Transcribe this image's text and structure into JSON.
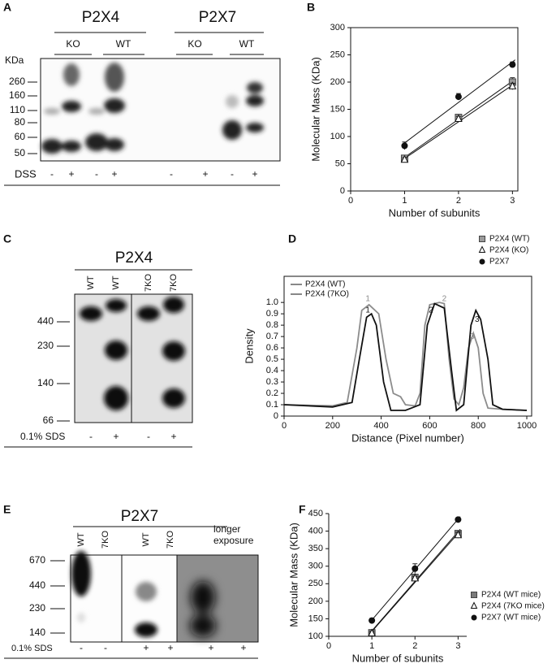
{
  "panels": {
    "A": {
      "letter": "A",
      "titles": [
        "P2X4",
        "P2X7"
      ],
      "groups": [
        "KO",
        "WT",
        "KO",
        "WT"
      ],
      "unit": "KDa",
      "markers": [
        260,
        160,
        110,
        80,
        60,
        50
      ],
      "treatment": "DSS",
      "signs": [
        "-",
        "+",
        "-",
        "+",
        "-",
        "+",
        "-",
        "+"
      ]
    },
    "C": {
      "letter": "C",
      "title": "P2X4",
      "lanes": [
        "WT",
        "WT",
        "7KO",
        "7KO"
      ],
      "markers": [
        440,
        230,
        140,
        66
      ],
      "treatment": "0.1% SDS",
      "signs": [
        "-",
        "+",
        "-",
        "+"
      ]
    },
    "E": {
      "letter": "E",
      "title": "P2X7",
      "lanes": [
        "WT",
        "7KO",
        "WT",
        "7KO"
      ],
      "note": [
        "longer",
        "exposure"
      ],
      "markers": [
        670,
        440,
        230,
        140
      ],
      "treatment": "0.1% SDS",
      "signs": [
        "-",
        "-",
        "+",
        "+",
        "+",
        "+"
      ]
    }
  },
  "chart_data": [
    {
      "type": "scatter",
      "label": "B",
      "xlabel": "Number of subunits",
      "ylabel": "Molecular Mass (KDa)",
      "x": [
        1,
        2,
        3
      ],
      "xlim": [
        0,
        3.1
      ],
      "ylim": [
        0,
        300
      ],
      "xticks": [
        0,
        1,
        2,
        3
      ],
      "yticks": [
        0,
        50,
        100,
        150,
        200,
        250,
        300
      ],
      "fit": true,
      "legend": "below",
      "series": [
        {
          "name": "P2X4 (WT)",
          "marker": "square",
          "color": "#9a9a9a",
          "values": [
            60,
            135,
            200
          ],
          "errors": [
            4,
            5,
            8
          ]
        },
        {
          "name": "P2X4 (KO)",
          "marker": "triangle",
          "color": "#ffffff",
          "values": [
            57,
            132,
            192
          ],
          "errors": [
            4,
            5,
            6
          ]
        },
        {
          "name": "P2X7",
          "marker": "circle",
          "color": "#111111",
          "values": [
            83,
            173,
            232
          ],
          "errors": [
            7,
            6,
            5
          ]
        }
      ]
    },
    {
      "type": "line",
      "label": "D",
      "xlabel": "Distance (Pixel number)",
      "ylabel": "Density",
      "xlim": [
        0,
        1020
      ],
      "ylim": [
        0,
        1.23
      ],
      "xticks": [
        0,
        200,
        400,
        600,
        800,
        1000
      ],
      "yticks": [
        0,
        0.1,
        0.2,
        0.3,
        0.4,
        0.5,
        0.6,
        0.7,
        0.8,
        0.9,
        {
          "value": 1,
          "label": "1.0"
        }
      ],
      "legend": "upper left",
      "series": [
        {
          "name": "P2X4 (WT)",
          "color": "#8c8c8c",
          "x": [
            0,
            200,
            260,
            300,
            320,
            350,
            390,
            420,
            450,
            480,
            500,
            540,
            560,
            580,
            600,
            640,
            660,
            680,
            700,
            720,
            740,
            760,
            780,
            800,
            820,
            840,
            900,
            1000
          ],
          "values": [
            0.1,
            0.09,
            0.12,
            0.6,
            0.93,
            0.98,
            0.9,
            0.5,
            0.2,
            0.17,
            0.1,
            0.09,
            0.2,
            0.8,
            0.98,
            1.0,
            0.99,
            0.5,
            0.15,
            0.1,
            0.25,
            0.6,
            0.73,
            0.6,
            0.2,
            0.07,
            0.06,
            0.05
          ]
        },
        {
          "name": "P2X4 (7KO)",
          "color": "#111111",
          "x": [
            0,
            200,
            280,
            310,
            340,
            360,
            380,
            410,
            440,
            500,
            560,
            590,
            620,
            660,
            690,
            710,
            740,
            770,
            790,
            810,
            840,
            860,
            900,
            1000
          ],
          "values": [
            0.1,
            0.08,
            0.12,
            0.5,
            0.87,
            0.9,
            0.8,
            0.3,
            0.05,
            0.05,
            0.1,
            0.8,
            0.99,
            0.95,
            0.4,
            0.05,
            0.1,
            0.8,
            0.93,
            0.85,
            0.5,
            0.1,
            0.06,
            0.05
          ]
        }
      ],
      "annotations": [
        {
          "text": "1",
          "x": 345,
          "y": 1.03,
          "color": "#8c8c8c"
        },
        {
          "text": "1",
          "x": 345,
          "y": 0.93,
          "color": "#111111"
        },
        {
          "text": "2",
          "x": 660,
          "y": 1.03,
          "color": "#8c8c8c"
        },
        {
          "text": "2",
          "x": 605,
          "y": 0.93,
          "color": "#111111"
        },
        {
          "text": "3",
          "x": 775,
          "y": 0.7,
          "color": "#8c8c8c"
        },
        {
          "text": "3",
          "x": 795,
          "y": 0.85,
          "color": "#111111"
        }
      ]
    },
    {
      "type": "scatter",
      "label": "F",
      "xlabel": "Number of subunits",
      "ylabel": "Molecular Mass (KDa)",
      "x": [
        1,
        2,
        3
      ],
      "xlim": [
        0,
        3.2
      ],
      "ylim": [
        100,
        450
      ],
      "xticks": [
        0,
        1,
        2,
        3
      ],
      "yticks": [
        100,
        150,
        200,
        250,
        300,
        350,
        400,
        450
      ],
      "fit": true,
      "legend": "right",
      "series": [
        {
          "name": "P2X4 (WT mice)",
          "marker": "square",
          "color": "#7a7a7a",
          "values": [
            110,
            268,
            393
          ],
          "errors": [
            5,
            6,
            8
          ]
        },
        {
          "name": "P2X4 (7KO mice)",
          "marker": "triangle",
          "color": "#ffffff",
          "values": [
            108,
            265,
            388
          ],
          "errors": [
            5,
            6,
            8
          ]
        },
        {
          "name": "P2X7 (WT mice)",
          "marker": "circle",
          "color": "#111111",
          "values": [
            145,
            293,
            433
          ],
          "errors": [
            6,
            14,
            5
          ]
        }
      ]
    }
  ]
}
